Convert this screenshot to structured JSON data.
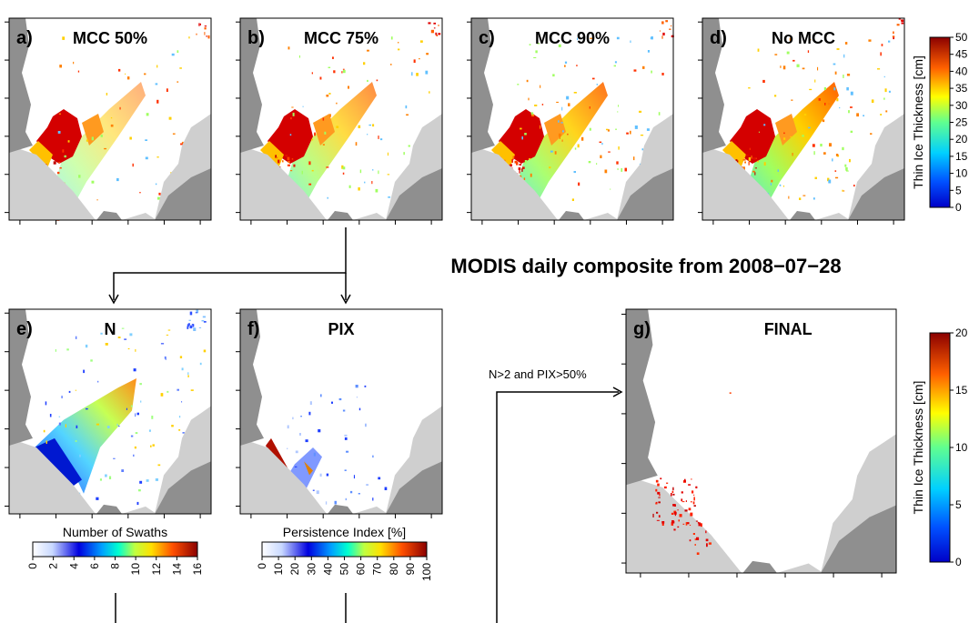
{
  "figure_title": "MODIS daily composite from 2008−07−28",
  "panels": [
    {
      "label": "a)",
      "title": "MCC 50%"
    },
    {
      "label": "b)",
      "title": "MCC 75%"
    },
    {
      "label": "c)",
      "title": "MCC 90%"
    },
    {
      "label": "d)",
      "title": "No MCC"
    },
    {
      "label": "e)",
      "title": "N"
    },
    {
      "label": "f)",
      "title": "PIX"
    },
    {
      "label": "g)",
      "title": "FINAL"
    }
  ],
  "colorbars": {
    "thickness_top": {
      "title": "Thin Ice Thickness [cm]",
      "ticks": [
        "0",
        "5",
        "10",
        "15",
        "20",
        "25",
        "30",
        "35",
        "40",
        "45",
        "50"
      ]
    },
    "thickness_final": {
      "title": "Thin Ice Thickness [cm]",
      "ticks": [
        "0",
        "5",
        "10",
        "15",
        "20"
      ]
    },
    "swaths": {
      "title": "Number of Swaths",
      "ticks": [
        "0",
        "2",
        "4",
        "6",
        "8",
        "10",
        "12",
        "14",
        "16"
      ]
    },
    "persistence": {
      "title": "Persistence Index [%]",
      "ticks": [
        "0",
        "10",
        "20",
        "30",
        "40",
        "50",
        "60",
        "70",
        "80",
        "90",
        "100"
      ]
    }
  },
  "condition_label": "N>2 and PIX>50%",
  "colors": {
    "land_dark": "#8f8f8f",
    "land_light": "#cfcfcf",
    "background": "#ffffff"
  }
}
